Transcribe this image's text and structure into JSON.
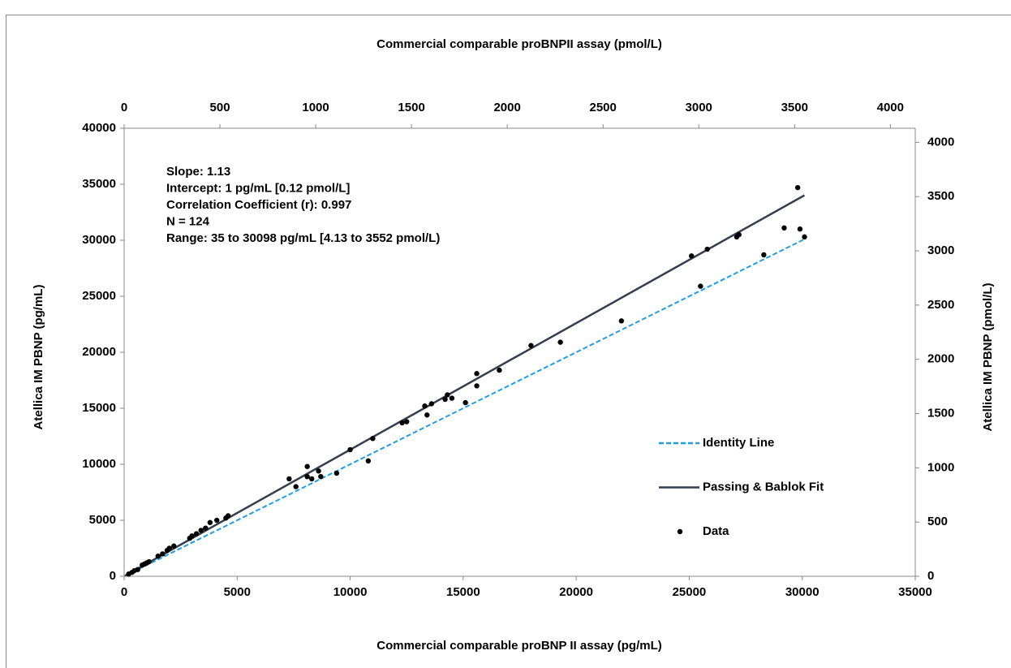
{
  "chart_data": {
    "type": "scatter",
    "xlabel": "Commercial comparable proBNP II assay (pg/mL)",
    "x2label": "Commercial comparable proBNPII assay (pmol/L)",
    "ylabel": "Atellica IM PBNP (pg/mL)",
    "y2label": "Atellica IM PBNP (pmol/L)",
    "annotations": [
      "Slope: 1.13",
      "Intercept: 1 pg/mL [0.12 pmol/L]",
      "Correlation Coefficient (r): 0.997",
      "N = 124",
      "Range: 35 to 30098 pg/mL [4.13 to 3552 pmol/L)"
    ],
    "xlim": [
      0,
      35000
    ],
    "xticks": [
      0,
      5000,
      10000,
      15000,
      20000,
      25000,
      30000,
      35000
    ],
    "x2lim": [
      0,
      4130
    ],
    "x2ticks": [
      0,
      500,
      1000,
      1500,
      2000,
      2500,
      3000,
      3500,
      4000
    ],
    "ylim": [
      0,
      40000
    ],
    "yticks": [
      0,
      5000,
      10000,
      15000,
      20000,
      25000,
      30000,
      35000,
      40000
    ],
    "y2lim": [
      0,
      4130
    ],
    "y2ticks": [
      0,
      500,
      1000,
      1500,
      2000,
      2500,
      3000,
      3500,
      4000
    ],
    "legend": "right",
    "series": [
      {
        "name": "Identity Line",
        "color": "#1f9fe0",
        "style": "dashed",
        "x": [
          35,
          30098
        ],
        "values": [
          35,
          30098
        ]
      },
      {
        "name": "Passing & Bablok Fit",
        "color": "#333f50",
        "style": "solid",
        "x": [
          35,
          30098
        ],
        "values": [
          41,
          34012
        ]
      },
      {
        "name": "Data",
        "color": "#000000",
        "style": "markers",
        "x": [
          200,
          350,
          450,
          600,
          800,
          900,
          1000,
          1100,
          1500,
          1700,
          1900,
          2000,
          2200,
          2900,
          3000,
          3200,
          3400,
          3600,
          3800,
          4100,
          4500,
          4600,
          7300,
          7600,
          8100,
          8100,
          8300,
          8600,
          8700,
          9400,
          10000,
          10800,
          11000,
          12300,
          12500,
          13300,
          13400,
          13600,
          14200,
          14300,
          14500,
          15100,
          15600,
          15600,
          16600,
          18000,
          19300,
          22000,
          25100,
          25500,
          25800,
          27100,
          27200,
          28300,
          29200,
          29800,
          29900,
          30100
        ],
        "values": [
          200,
          350,
          500,
          600,
          1000,
          1100,
          1200,
          1300,
          1800,
          2000,
          2300,
          2500,
          2700,
          3400,
          3600,
          3800,
          4100,
          4300,
          4800,
          5000,
          5200,
          5400,
          8700,
          8000,
          9800,
          8900,
          8700,
          9400,
          8900,
          9200,
          11300,
          10300,
          12300,
          13700,
          13800,
          15200,
          14400,
          15400,
          15800,
          16200,
          15900,
          15500,
          18100,
          17000,
          18400,
          20600,
          20900,
          22800,
          28600,
          25900,
          29200,
          30300,
          30500,
          28700,
          31100,
          34700,
          31000,
          30300
        ]
      }
    ]
  }
}
